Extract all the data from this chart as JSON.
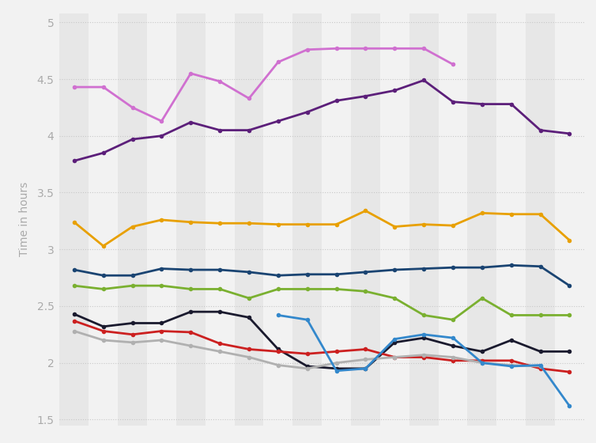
{
  "n_points": 18,
  "ylabel": "Time in hours",
  "ylim": [
    1.45,
    5.08
  ],
  "yticks": [
    1.5,
    2.0,
    2.5,
    3.0,
    3.5,
    4.0,
    4.5,
    5.0
  ],
  "background_color": "#f2f2f2",
  "plot_bg_color": "#f2f2f2",
  "grid_color": "#cccccc",
  "series": [
    {
      "color": "#d070d0",
      "values": [
        4.43,
        4.43,
        4.25,
        4.13,
        4.55,
        4.48,
        4.33,
        4.65,
        4.76,
        4.77,
        4.77,
        4.77,
        4.77,
        4.63,
        null,
        null,
        null,
        null
      ]
    },
    {
      "color": "#5c1f7a",
      "values": [
        3.78,
        3.85,
        3.97,
        4.0,
        4.12,
        4.05,
        4.05,
        4.13,
        4.21,
        4.31,
        4.35,
        4.4,
        4.49,
        4.3,
        4.28,
        4.28,
        4.05,
        4.02
      ]
    },
    {
      "color": "#e8a000",
      "values": [
        3.24,
        3.03,
        3.2,
        3.26,
        3.24,
        3.23,
        3.23,
        3.22,
        3.22,
        3.22,
        3.34,
        3.2,
        3.22,
        3.21,
        3.32,
        3.31,
        3.31,
        3.08
      ]
    },
    {
      "color": "#1a4472",
      "values": [
        2.82,
        2.77,
        2.77,
        2.83,
        2.82,
        2.82,
        2.8,
        2.77,
        2.78,
        2.78,
        2.8,
        2.82,
        2.83,
        2.84,
        2.84,
        2.86,
        2.85,
        2.68
      ]
    },
    {
      "color": "#7ab030",
      "values": [
        2.68,
        2.65,
        2.68,
        2.68,
        2.65,
        2.65,
        2.57,
        2.65,
        2.65,
        2.65,
        2.63,
        2.57,
        2.42,
        2.38,
        2.57,
        2.42,
        2.42,
        2.42
      ]
    },
    {
      "color": "#1a1a2e",
      "values": [
        2.43,
        2.32,
        2.35,
        2.35,
        2.45,
        2.45,
        2.4,
        2.12,
        1.97,
        1.95,
        1.95,
        2.18,
        2.22,
        2.15,
        2.1,
        2.2,
        2.1,
        2.1
      ]
    },
    {
      "color": "#cc2020",
      "values": [
        2.37,
        2.28,
        2.25,
        2.28,
        2.27,
        2.17,
        2.12,
        2.1,
        2.08,
        2.1,
        2.12,
        2.05,
        2.05,
        2.02,
        2.02,
        2.02,
        1.95,
        1.92
      ]
    },
    {
      "color": "#b0b0b0",
      "values": [
        2.28,
        2.2,
        2.18,
        2.2,
        2.15,
        2.1,
        2.05,
        1.98,
        1.95,
        2.0,
        2.03,
        2.05,
        2.07,
        2.05,
        2.0,
        1.98,
        1.97,
        null
      ]
    },
    {
      "color": "#3388cc",
      "values": [
        null,
        null,
        null,
        null,
        null,
        null,
        null,
        2.42,
        2.38,
        1.93,
        1.95,
        2.21,
        2.25,
        2.22,
        2.0,
        1.97,
        1.98,
        1.62
      ]
    }
  ]
}
